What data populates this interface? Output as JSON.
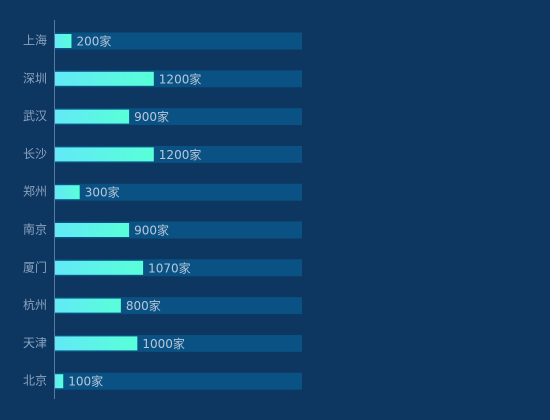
{
  "colors": {
    "background": "#0d3660",
    "track": "#0b5284",
    "bar_start": "#62e9f6",
    "bar_end": "#58ffd8",
    "axis": "#58799b",
    "label_text": "#8aa3bf",
    "value_text": "#b7c7da"
  },
  "chart_data": {
    "type": "bar",
    "orientation": "horizontal",
    "title": "",
    "xlabel": "",
    "ylabel": "",
    "unit": "家",
    "xlim": [
      0,
      3000
    ],
    "grid": false,
    "legend": "none",
    "categories": [
      "上海",
      "深圳",
      "武汉",
      "长沙",
      "郑州",
      "南京",
      "厦门",
      "杭州",
      "天津",
      "北京"
    ],
    "values": [
      200,
      1200,
      900,
      1200,
      300,
      900,
      1070,
      800,
      1000,
      100
    ],
    "value_labels": [
      "200家",
      "1200家",
      "900家",
      "1200家",
      "300家",
      "900家",
      "1070家",
      "800家",
      "1000家",
      "100家"
    ]
  }
}
